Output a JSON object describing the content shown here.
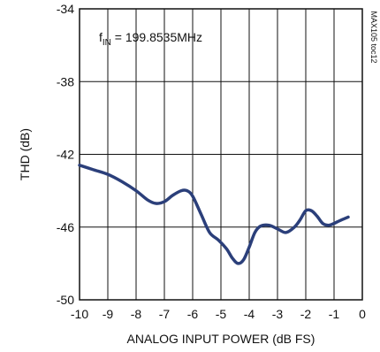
{
  "chart_data": {
    "type": "line",
    "xlabel": "ANALOG INPUT POWER (dB FS)",
    "ylabel": "THD (dB)",
    "xlim": [
      -10,
      0
    ],
    "ylim": [
      -50,
      -34
    ],
    "x_ticks": [
      -10,
      -9,
      -8,
      -7,
      -6,
      -5,
      -4,
      -3,
      -2,
      -1,
      0
    ],
    "x_tick_labels": [
      "-10",
      "-9",
      "-8",
      "-7",
      "-6",
      "-5",
      "-4",
      "-3",
      "-2",
      "-1",
      "0"
    ],
    "y_ticks": [
      -50,
      -46,
      -42,
      -38,
      -34
    ],
    "y_tick_labels": [
      "-50",
      "-46",
      "-42",
      "-38",
      "-34"
    ],
    "grid": true,
    "annotation": {
      "main": "f",
      "sub": "IN",
      "rest": " = 199.8535MHz"
    },
    "watermark": "MAX105 toc12",
    "series": [
      {
        "color": "#2b3f7a",
        "x": [
          -10,
          -9.5,
          -9,
          -8.5,
          -8,
          -7.6,
          -7.3,
          -7.0,
          -6.7,
          -6.4,
          -6.2,
          -6.0,
          -5.7,
          -5.4,
          -5.1,
          -4.8,
          -4.6,
          -4.4,
          -4.2,
          -4.0,
          -3.8,
          -3.6,
          -3.3,
          -3.0,
          -2.7,
          -2.4,
          -2.2,
          -2.0,
          -1.8,
          -1.6,
          -1.4,
          -1.2,
          -1.0,
          -0.8,
          -0.5
        ],
        "y": [
          -42.6,
          -42.85,
          -43.1,
          -43.5,
          -44.0,
          -44.5,
          -44.7,
          -44.6,
          -44.25,
          -44.0,
          -44.0,
          -44.3,
          -45.3,
          -46.3,
          -46.7,
          -47.2,
          -47.7,
          -48.0,
          -47.8,
          -47.1,
          -46.3,
          -45.95,
          -45.9,
          -46.1,
          -46.3,
          -46.0,
          -45.6,
          -45.1,
          -45.1,
          -45.4,
          -45.8,
          -45.9,
          -45.8,
          -45.65,
          -45.45
        ]
      }
    ]
  }
}
